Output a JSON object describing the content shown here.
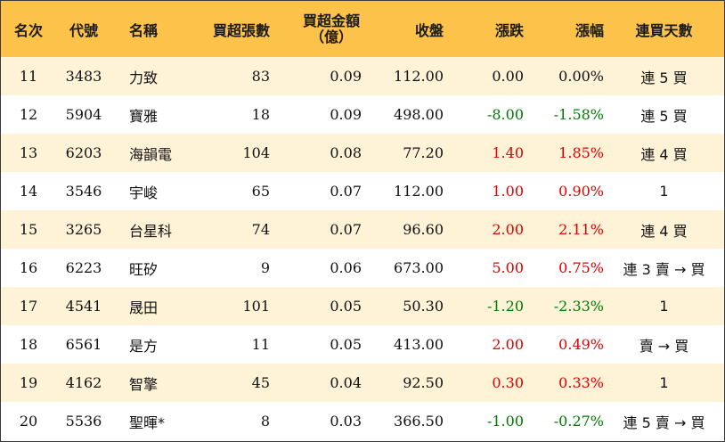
{
  "colors": {
    "header_bg": "#fcc24a",
    "row_alt_bg": "#fef2d7",
    "up": "#e00000",
    "down": "#007a00"
  },
  "headers": {
    "rank": "名次",
    "code": "代號",
    "name": "名稱",
    "lots": "買超張數",
    "amount_line1": "買超金額",
    "amount_line2": "（億）",
    "close": "收盤",
    "change": "漲跌",
    "pct": "漲幅",
    "streak": "連買天數"
  },
  "rows": [
    {
      "rank": "11",
      "code": "3483",
      "name": "力致",
      "lots": "83",
      "amount": "0.09",
      "close": "112.00",
      "change": "0.00",
      "pct": "0.00%",
      "dir": "flat",
      "streak": "連 5 買"
    },
    {
      "rank": "12",
      "code": "5904",
      "name": "寶雅",
      "lots": "18",
      "amount": "0.09",
      "close": "498.00",
      "change": "-8.00",
      "pct": "-1.58%",
      "dir": "down",
      "streak": "連 5 買"
    },
    {
      "rank": "13",
      "code": "6203",
      "name": "海韻電",
      "lots": "104",
      "amount": "0.08",
      "close": "77.20",
      "change": "1.40",
      "pct": "1.85%",
      "dir": "up",
      "streak": "連 4 買"
    },
    {
      "rank": "14",
      "code": "3546",
      "name": "宇峻",
      "lots": "65",
      "amount": "0.07",
      "close": "112.00",
      "change": "1.00",
      "pct": "0.90%",
      "dir": "up",
      "streak": "1"
    },
    {
      "rank": "15",
      "code": "3265",
      "name": "台星科",
      "lots": "74",
      "amount": "0.07",
      "close": "96.60",
      "change": "2.00",
      "pct": "2.11%",
      "dir": "up",
      "streak": "連 4 買"
    },
    {
      "rank": "16",
      "code": "6223",
      "name": "旺矽",
      "lots": "9",
      "amount": "0.06",
      "close": "673.00",
      "change": "5.00",
      "pct": "0.75%",
      "dir": "up",
      "streak": "連 3 賣 → 買"
    },
    {
      "rank": "17",
      "code": "4541",
      "name": "晟田",
      "lots": "101",
      "amount": "0.05",
      "close": "50.30",
      "change": "-1.20",
      "pct": "-2.33%",
      "dir": "down",
      "streak": "1"
    },
    {
      "rank": "18",
      "code": "6561",
      "name": "是方",
      "lots": "11",
      "amount": "0.05",
      "close": "413.00",
      "change": "2.00",
      "pct": "0.49%",
      "dir": "up",
      "streak": "賣 → 買"
    },
    {
      "rank": "19",
      "code": "4162",
      "name": "智擎",
      "lots": "45",
      "amount": "0.04",
      "close": "92.50",
      "change": "0.30",
      "pct": "0.33%",
      "dir": "up",
      "streak": "1"
    },
    {
      "rank": "20",
      "code": "5536",
      "name": "聖暉*",
      "lots": "8",
      "amount": "0.03",
      "close": "366.50",
      "change": "-1.00",
      "pct": "-0.27%",
      "dir": "down",
      "streak": "連 5 賣 → 買"
    }
  ]
}
